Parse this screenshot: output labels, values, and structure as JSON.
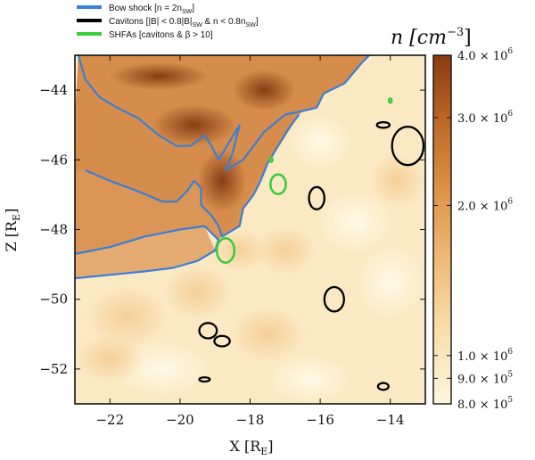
{
  "chart_data": {
    "type": "heatmap",
    "title": "",
    "xlabel": "X [R",
    "xlabel_sub": "E",
    "xlabel_tail": "]",
    "ylabel": "Z [R",
    "ylabel_sub": "E",
    "ylabel_tail": "]",
    "xlim": [
      -23,
      -13
    ],
    "ylim": [
      -53,
      -43
    ],
    "xticks": [
      -22,
      -20,
      -18,
      -16,
      -14
    ],
    "xtick_labels": [
      "−22",
      "−20",
      "−18",
      "−16",
      "−14"
    ],
    "yticks": [
      -44,
      -46,
      -48,
      -50,
      -52
    ],
    "ytick_labels": [
      "−44",
      "−46",
      "−48",
      "−50",
      "−52"
    ],
    "colorbar": {
      "title": "n [cm",
      "title_sup": "−3",
      "title_tail": "]",
      "scale": "log",
      "range": [
        800000,
        4000000
      ],
      "colors": [
        "#fff6dc",
        "#f8e0ad",
        "#f0bd7a",
        "#e0944a",
        "#c06a28",
        "#8a3a10"
      ],
      "ticks": [
        {
          "value": 4000000,
          "label": "4.0 × 10",
          "exp": "6"
        },
        {
          "value": 3000000,
          "label": "3.0 × 10",
          "exp": "6"
        },
        {
          "value": 2000000,
          "label": "2.0 × 10",
          "exp": "6"
        },
        {
          "value": 1000000,
          "label": "1.0 × 10",
          "exp": "6"
        },
        {
          "value": 900000,
          "label": "9.0 × 10",
          "exp": "5"
        },
        {
          "value": 800000,
          "label": "8.0 × 10",
          "exp": "5"
        }
      ]
    },
    "legend": {
      "placement": "top-left, outside plot",
      "entries": [
        {
          "label": "Bow shock [n = 2n",
          "sub": "SW",
          "tail": "]",
          "color": "#3a7fd5"
        },
        {
          "label": "Cavitons [|B| < 0.8|B|",
          "sub": "SW",
          "tail": " & n < 0.8n",
          "sub2": "SW",
          "tail2": "]",
          "color": "#000000"
        },
        {
          "label": "SHFAs [cavitons & β > 10]",
          "color": "#3dcc3d"
        }
      ]
    },
    "series": [
      {
        "name": "Bow shock [n = 2n",
        "color": "#3a7fd5",
        "segments": [
          [
            [
              -22.9,
              -43.0
            ],
            [
              -22.7,
              -43.7
            ],
            [
              -22.3,
              -44.2
            ],
            [
              -21.8,
              -44.5
            ],
            [
              -21.2,
              -44.8
            ],
            [
              -20.6,
              -45.3
            ],
            [
              -20.1,
              -45.6
            ],
            [
              -19.7,
              -45.6
            ],
            [
              -19.3,
              -45.3
            ],
            [
              -19.1,
              -45.6
            ],
            [
              -18.9,
              -46.0
            ],
            [
              -18.6,
              -45.5
            ],
            [
              -18.3,
              -45.0
            ],
            [
              -18.5,
              -45.8
            ],
            [
              -18.7,
              -46.3
            ],
            [
              -18.2,
              -46.0
            ],
            [
              -17.9,
              -45.6
            ],
            [
              -17.6,
              -45.2
            ],
            [
              -17.0,
              -44.7
            ],
            [
              -16.5,
              -44.6
            ],
            [
              -16.1,
              -44.5
            ],
            [
              -15.9,
              -44.1
            ],
            [
              -15.3,
              -43.8
            ],
            [
              -14.8,
              -43.2
            ],
            [
              -14.6,
              -43.0
            ]
          ],
          [
            [
              -22.7,
              -46.3
            ],
            [
              -22.0,
              -46.6
            ],
            [
              -21.2,
              -46.9
            ],
            [
              -20.5,
              -47.2
            ],
            [
              -20.1,
              -47.2
            ],
            [
              -19.8,
              -46.9
            ],
            [
              -19.6,
              -46.6
            ],
            [
              -19.4,
              -46.8
            ],
            [
              -19.4,
              -47.3
            ],
            [
              -19.1,
              -47.6
            ],
            [
              -18.9,
              -47.9
            ],
            [
              -18.8,
              -48.2
            ],
            [
              -18.3,
              -47.9
            ],
            [
              -18.2,
              -47.4
            ],
            [
              -17.9,
              -47.0
            ],
            [
              -17.7,
              -46.6
            ],
            [
              -17.5,
              -46.1
            ],
            [
              -17.2,
              -45.6
            ],
            [
              -16.9,
              -45.1
            ],
            [
              -16.6,
              -44.7
            ]
          ],
          [
            [
              -23.0,
              -48.7
            ],
            [
              -22.0,
              -48.5
            ],
            [
              -21.0,
              -48.2
            ],
            [
              -20.0,
              -48.0
            ],
            [
              -19.3,
              -47.9
            ],
            [
              -18.9,
              -48.3
            ],
            [
              -19.0,
              -48.6
            ],
            [
              -19.5,
              -48.9
            ],
            [
              -20.2,
              -49.1
            ],
            [
              -21.0,
              -49.2
            ],
            [
              -22.0,
              -49.3
            ],
            [
              -23.0,
              -49.4
            ]
          ]
        ]
      },
      {
        "name": "",
        "color": "#000000",
        "closed_shapes": [
          {
            "cx": -13.5,
            "cy": -45.6,
            "rx": 0.45,
            "ry": 0.55
          },
          {
            "cx": -14.2,
            "cy": -45.0,
            "rx": 0.18,
            "ry": 0.08
          },
          {
            "cx": -16.1,
            "cy": -47.1,
            "rx": 0.22,
            "ry": 0.32
          },
          {
            "cx": -15.6,
            "cy": -50.0,
            "rx": 0.28,
            "ry": 0.35
          },
          {
            "cx": -19.2,
            "cy": -50.9,
            "rx": 0.25,
            "ry": 0.22
          },
          {
            "cx": -18.8,
            "cy": -51.2,
            "rx": 0.22,
            "ry": 0.15
          },
          {
            "cx": -19.3,
            "cy": -52.3,
            "rx": 0.15,
            "ry": 0.06
          },
          {
            "cx": -14.2,
            "cy": -52.5,
            "rx": 0.15,
            "ry": 0.1
          }
        ]
      },
      {
        "name": "",
        "color": "#3dcc3d",
        "closed_shapes": [
          {
            "cx": -17.2,
            "cy": -46.7,
            "rx": 0.22,
            "ry": 0.28
          },
          {
            "cx": -18.7,
            "cy": -48.6,
            "rx": 0.25,
            "ry": 0.35
          },
          {
            "cx": -14.0,
            "cy": -44.3,
            "rx": 0.04,
            "ry": 0.06
          },
          {
            "cx": -17.4,
            "cy": -46.0,
            "rx": 0.04,
            "ry": 0.06
          }
        ]
      }
    ],
    "density_field_description_not_printed": null
  }
}
